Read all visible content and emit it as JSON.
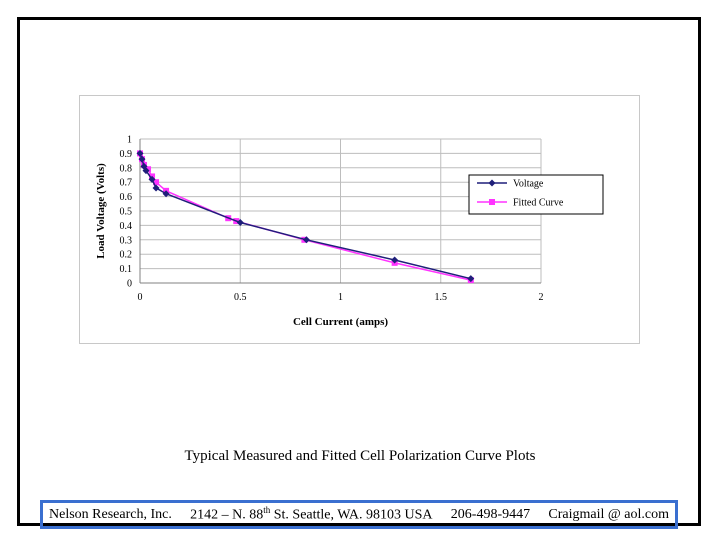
{
  "caption": "Typical Measured and Fitted Cell Polarization Curve Plots",
  "footer": {
    "company": "Nelson Research, Inc.",
    "address_pre": "2142 – N. 88",
    "address_sup": "th",
    "address_post": " St. Seattle, WA. 98103  USA",
    "phone": "206-498-9447",
    "email": "Craigmail @ aol.com"
  },
  "chart_data": {
    "type": "line",
    "xlabel": "Cell Current (amps)",
    "ylabel": "Load Voltage (Volts)",
    "xlim": [
      0,
      2
    ],
    "ylim": [
      0,
      1
    ],
    "x_ticks": [
      "0",
      "0.5",
      "1",
      "1.5",
      "2"
    ],
    "y_ticks": [
      "0",
      "0.1",
      "0.2",
      "0.3",
      "0.4",
      "0.5",
      "0.6",
      "0.7",
      "0.8",
      "0.9",
      "1"
    ],
    "grid": true,
    "legend_position": "right",
    "series": [
      {
        "name": "Voltage",
        "color": "#1f1f7a",
        "marker": "diamond",
        "points": [
          [
            0.0,
            0.9
          ],
          [
            0.01,
            0.86
          ],
          [
            0.02,
            0.81
          ],
          [
            0.03,
            0.78
          ],
          [
            0.06,
            0.72
          ],
          [
            0.08,
            0.66
          ],
          [
            0.13,
            0.62
          ],
          [
            0.5,
            0.42
          ],
          [
            0.83,
            0.3
          ],
          [
            1.27,
            0.16
          ],
          [
            1.65,
            0.03
          ]
        ]
      },
      {
        "name": "Fitted Curve",
        "color": "#ff33ff",
        "marker": "square",
        "points": [
          [
            0.0,
            0.9
          ],
          [
            0.01,
            0.86
          ],
          [
            0.02,
            0.82
          ],
          [
            0.04,
            0.79
          ],
          [
            0.06,
            0.74
          ],
          [
            0.08,
            0.7
          ],
          [
            0.13,
            0.64
          ],
          [
            0.44,
            0.45
          ],
          [
            0.48,
            0.43
          ],
          [
            0.82,
            0.3
          ],
          [
            1.27,
            0.14
          ],
          [
            1.65,
            0.02
          ]
        ]
      }
    ]
  }
}
